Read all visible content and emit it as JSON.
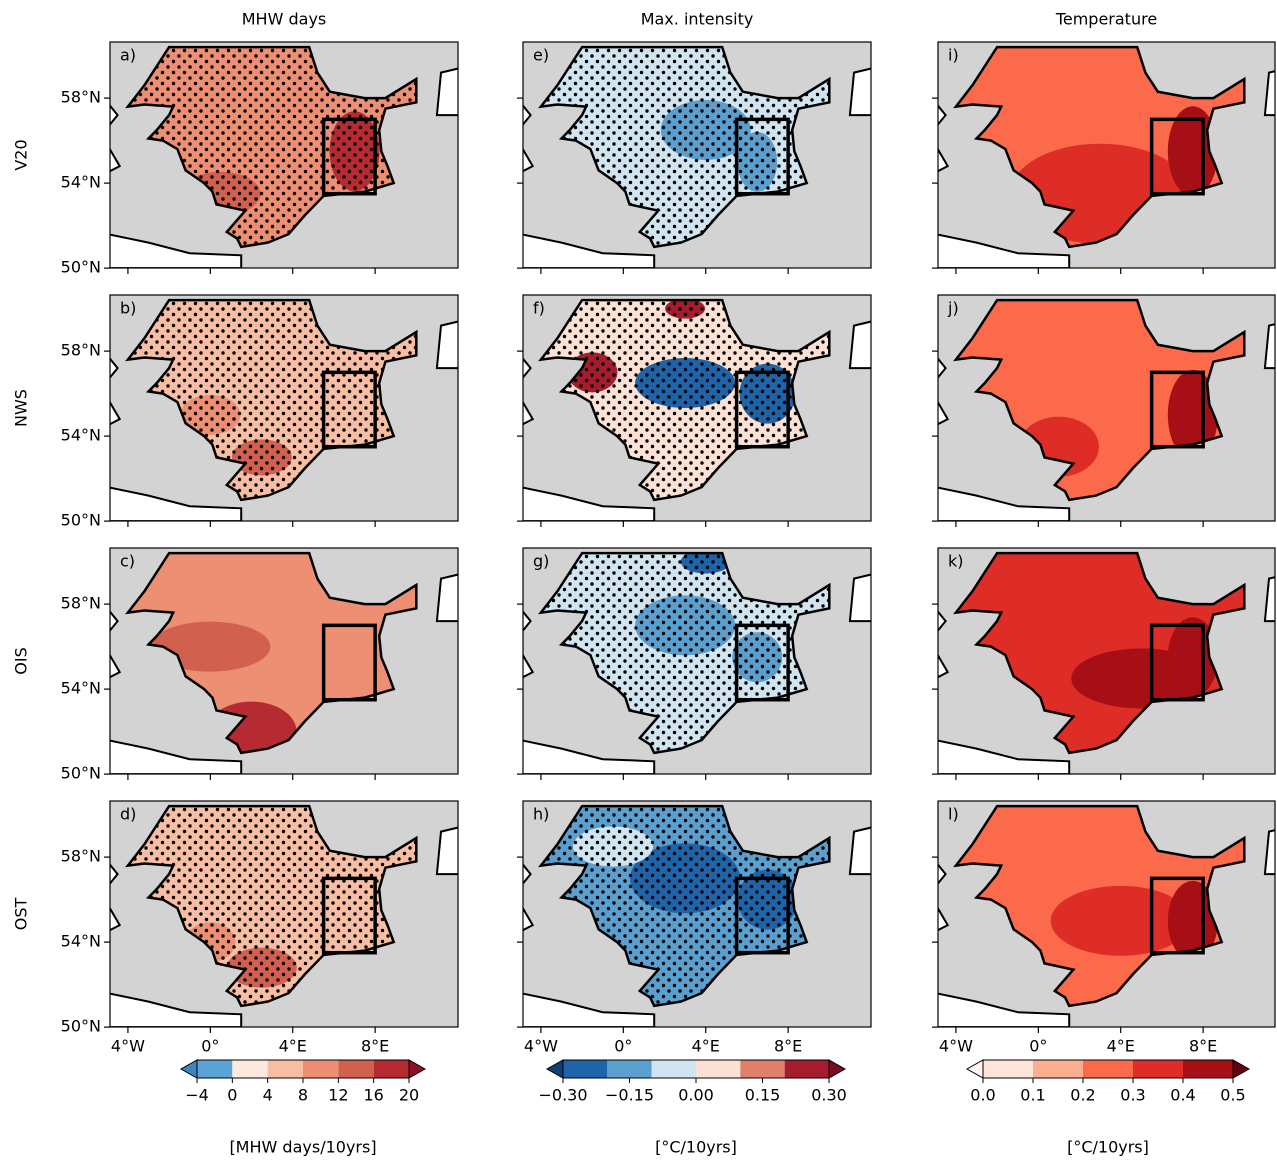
{
  "column_titles": [
    "MHW days",
    "Max. intensity",
    "Temperature"
  ],
  "row_labels": [
    "V20",
    "NWS",
    "OIS",
    "OST"
  ],
  "panel_labels": [
    [
      "a)",
      "e)",
      "i)"
    ],
    [
      "b)",
      "f)",
      "j)"
    ],
    [
      "c)",
      "g)",
      "k)"
    ],
    [
      "d)",
      "h)",
      "l)"
    ]
  ],
  "lat_ticks": [
    {
      "value": 50,
      "label": "50°N"
    },
    {
      "value": 54,
      "label": "54°N"
    },
    {
      "value": 58,
      "label": "58°N"
    }
  ],
  "lon_ticks": [
    {
      "value": -4,
      "label": "4°W"
    },
    {
      "value": 0,
      "label": "0°"
    },
    {
      "value": 4,
      "label": "4°E"
    },
    {
      "value": 8,
      "label": "8°E"
    }
  ],
  "colorbars": [
    {
      "label": "[MHW days/10yrs]",
      "levels": [
        -4,
        0,
        4,
        8,
        12,
        16,
        20
      ],
      "colors": [
        "#5ba3d4",
        "#fde8de",
        "#f7bea4",
        "#ec8f72",
        "#d2604f",
        "#b62a32"
      ],
      "under": "#3f86c0",
      "over": "#8e1026",
      "ticks": [
        {
          "value": -4,
          "label": "−4"
        },
        0,
        4,
        8,
        12,
        16,
        20
      ]
    },
    {
      "label": "[°C/10yrs]",
      "levels": [
        -0.3,
        -0.2,
        -0.1,
        0,
        0.1,
        0.2,
        0.3
      ],
      "colors": [
        "#1f63a8",
        "#5a9fce",
        "#d1e5f0",
        "#fbe2d5",
        "#e0806a",
        "#a51c2d"
      ],
      "under": "#0d3f78",
      "over": "#7b0b22",
      "ticks": [
        {
          "value": -0.3,
          "label": "−0.30"
        },
        {
          "value": -0.15,
          "label": "−0.15"
        },
        {
          "value": 0,
          "label": "0.00"
        },
        {
          "value": 0.15,
          "label": "0.15"
        },
        {
          "value": 0.3,
          "label": "0.30"
        }
      ]
    },
    {
      "label": "[°C/10yrs]",
      "levels": [
        0,
        0.1,
        0.2,
        0.3,
        0.4,
        0.5
      ],
      "colors": [
        "#fee5d9",
        "#fcae91",
        "#fb6a4a",
        "#de2d26",
        "#a50f15"
      ],
      "under": "#fff5f0",
      "over": "#67000d",
      "ticks": [
        {
          "value": 0,
          "label": "0.0"
        },
        {
          "value": 0.1,
          "label": "0.1"
        },
        {
          "value": 0.2,
          "label": "0.2"
        },
        {
          "value": 0.3,
          "label": "0.3"
        },
        {
          "value": 0.4,
          "label": "0.4"
        },
        {
          "value": 0.5,
          "label": "0.5"
        }
      ]
    }
  ]
}
